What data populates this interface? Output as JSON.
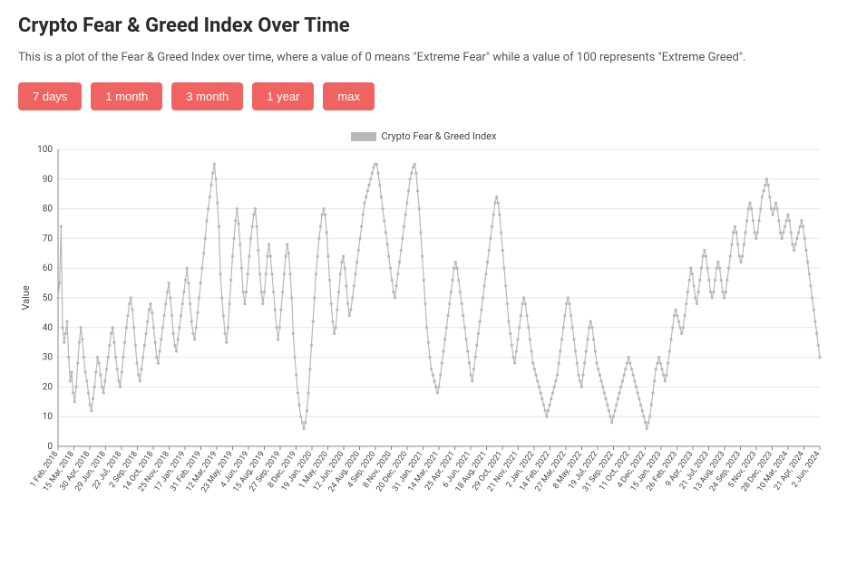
{
  "title": "Crypto Fear & Greed Index Over Time",
  "subtitle": "This is a plot of the Fear & Greed Index over time, where a value of 0 means \"Extreme Fear\" while a value of 100 represents \"Extreme Greed\".",
  "buttons": {
    "d7": "7 days",
    "m1": "1 month",
    "m3": "3 month",
    "y1": "1 year",
    "max": "max"
  },
  "button_color": "#ef6461",
  "chart": {
    "type": "line",
    "legend_label": "Crypto Fear & Greed Index",
    "ylabel": "Value",
    "ylim": [
      0,
      100
    ],
    "yticks": [
      0,
      10,
      20,
      30,
      40,
      50,
      60,
      70,
      80,
      90,
      100
    ],
    "series_color": "#b8b8b8",
    "grid_color": "#e6e6e6",
    "axis_color": "#888888",
    "background_color": "#ffffff",
    "marker_radius": 1.6,
    "line_width": 1.2,
    "title_fontsize": 22,
    "label_fontsize": 11,
    "tick_fontsize": 10,
    "x_tick_labels": [
      "1 Feb, 2018",
      "15 Mar, 2018",
      "30 Apr, 2018",
      "29 Jun, 2018",
      "22 Jul, 2018",
      "2 Sep, 2018",
      "14 Oct, 2018",
      "25 Nov, 2018",
      "17 Jan, 2019",
      "31 Feb, 2019",
      "12 Mar, 2019",
      "23 May, 2019",
      "4 Jun, 2019",
      "15 Aug, 2019",
      "27 Sep, 2019",
      "8 Dec, 2019",
      "19 Jan, 2020",
      "1 May, 2020",
      "12 Jun, 2020",
      "24 Aug, 2020",
      "4 Sep, 2020",
      "8 Nov, 2020",
      "20 Dec, 2020",
      "31 Jan, 2021",
      "14 Mar, 2021",
      "25 Apr, 2021",
      "6 Jun, 2021",
      "18 Aug, 2021",
      "29 Oct, 2021",
      "21 Nov, 2021",
      "2 Jan, 2022",
      "14 Feb, 2022",
      "27 Mar, 2022",
      "8 May, 2022",
      "19 Jul, 2022",
      "31 Sep, 2022",
      "11 Oct, 2022",
      "4 Dec, 2022",
      "15 Jan, 2023",
      "26 Feb, 2023",
      "9 Apr, 2023",
      "21 Jul, 2023",
      "13 Aug, 2023",
      "24 Sep, 2023",
      "5 Nov, 2023",
      "28 Dec, 2023",
      "10 Mar, 2024",
      "21 Apr, 2024",
      "2 Jun, 2024"
    ],
    "values": [
      50,
      55,
      74,
      40,
      35,
      38,
      42,
      30,
      22,
      25,
      18,
      15,
      20,
      28,
      35,
      40,
      36,
      30,
      25,
      22,
      18,
      14,
      12,
      16,
      20,
      25,
      30,
      28,
      24,
      20,
      18,
      22,
      26,
      30,
      34,
      38,
      40,
      35,
      30,
      26,
      22,
      20,
      25,
      30,
      35,
      40,
      44,
      48,
      50,
      46,
      40,
      34,
      28,
      24,
      22,
      26,
      30,
      34,
      38,
      42,
      46,
      48,
      45,
      40,
      35,
      30,
      28,
      32,
      36,
      40,
      44,
      48,
      52,
      55,
      50,
      44,
      38,
      34,
      32,
      36,
      40,
      44,
      48,
      52,
      56,
      60,
      55,
      48,
      42,
      38,
      36,
      40,
      45,
      50,
      55,
      60,
      65,
      70,
      76,
      80,
      84,
      88,
      92,
      95,
      90,
      82,
      74,
      58,
      50,
      44,
      38,
      35,
      40,
      48,
      56,
      64,
      70,
      76,
      80,
      75,
      68,
      60,
      52,
      48,
      52,
      58,
      64,
      70,
      74,
      78,
      80,
      74,
      66,
      58,
      52,
      48,
      52,
      58,
      64,
      68,
      64,
      58,
      52,
      46,
      40,
      36,
      40,
      46,
      52,
      58,
      64,
      68,
      65,
      58,
      50,
      38,
      30,
      24,
      18,
      14,
      10,
      8,
      6,
      8,
      12,
      18,
      26,
      34,
      42,
      50,
      58,
      64,
      70,
      74,
      78,
      80,
      78,
      72,
      64,
      56,
      48,
      42,
      38,
      40,
      46,
      52,
      58,
      62,
      64,
      60,
      54,
      48,
      44,
      46,
      50,
      54,
      58,
      62,
      66,
      70,
      74,
      78,
      82,
      84,
      86,
      88,
      90,
      92,
      94,
      95,
      95,
      92,
      88,
      84,
      80,
      76,
      72,
      68,
      64,
      60,
      56,
      52,
      50,
      54,
      58,
      62,
      66,
      70,
      74,
      78,
      82,
      86,
      90,
      92,
      94,
      95,
      92,
      86,
      80,
      72,
      64,
      56,
      48,
      40,
      35,
      30,
      26,
      24,
      22,
      20,
      18,
      20,
      24,
      28,
      32,
      36,
      40,
      44,
      48,
      52,
      56,
      60,
      62,
      60,
      56,
      52,
      48,
      44,
      40,
      36,
      32,
      28,
      24,
      22,
      26,
      30,
      34,
      38,
      42,
      46,
      50,
      54,
      58,
      62,
      66,
      70,
      74,
      78,
      82,
      84,
      82,
      78,
      72,
      66,
      60,
      54,
      48,
      42,
      38,
      34,
      30,
      28,
      32,
      36,
      40,
      44,
      48,
      50,
      48,
      44,
      40,
      36,
      32,
      28,
      26,
      24,
      22,
      20,
      18,
      16,
      14,
      12,
      10,
      12,
      14,
      16,
      18,
      20,
      22,
      24,
      28,
      32,
      36,
      40,
      44,
      48,
      50,
      48,
      44,
      40,
      36,
      32,
      28,
      24,
      22,
      20,
      24,
      28,
      32,
      36,
      40,
      42,
      40,
      36,
      32,
      28,
      26,
      24,
      22,
      20,
      18,
      16,
      14,
      12,
      10,
      8,
      10,
      12,
      14,
      16,
      18,
      20,
      22,
      24,
      26,
      28,
      30,
      28,
      26,
      24,
      22,
      20,
      18,
      16,
      14,
      12,
      10,
      8,
      6,
      8,
      10,
      14,
      18,
      22,
      26,
      28,
      30,
      28,
      26,
      24,
      22,
      24,
      28,
      32,
      36,
      40,
      44,
      46,
      44,
      42,
      40,
      38,
      40,
      44,
      48,
      52,
      56,
      60,
      58,
      54,
      50,
      48,
      52,
      56,
      60,
      64,
      66,
      64,
      60,
      56,
      52,
      50,
      52,
      56,
      60,
      62,
      60,
      56,
      52,
      50,
      52,
      56,
      60,
      64,
      68,
      72,
      74,
      72,
      68,
      64,
      62,
      64,
      68,
      72,
      76,
      80,
      82,
      80,
      76,
      72,
      70,
      72,
      76,
      80,
      84,
      86,
      88,
      90,
      88,
      84,
      80,
      78,
      80,
      82,
      80,
      76,
      72,
      70,
      72,
      74,
      76,
      78,
      76,
      72,
      68,
      66,
      68,
      70,
      72,
      74,
      76,
      74,
      70,
      66,
      62,
      58,
      54,
      50,
      46,
      42,
      38,
      34,
      30
    ]
  }
}
